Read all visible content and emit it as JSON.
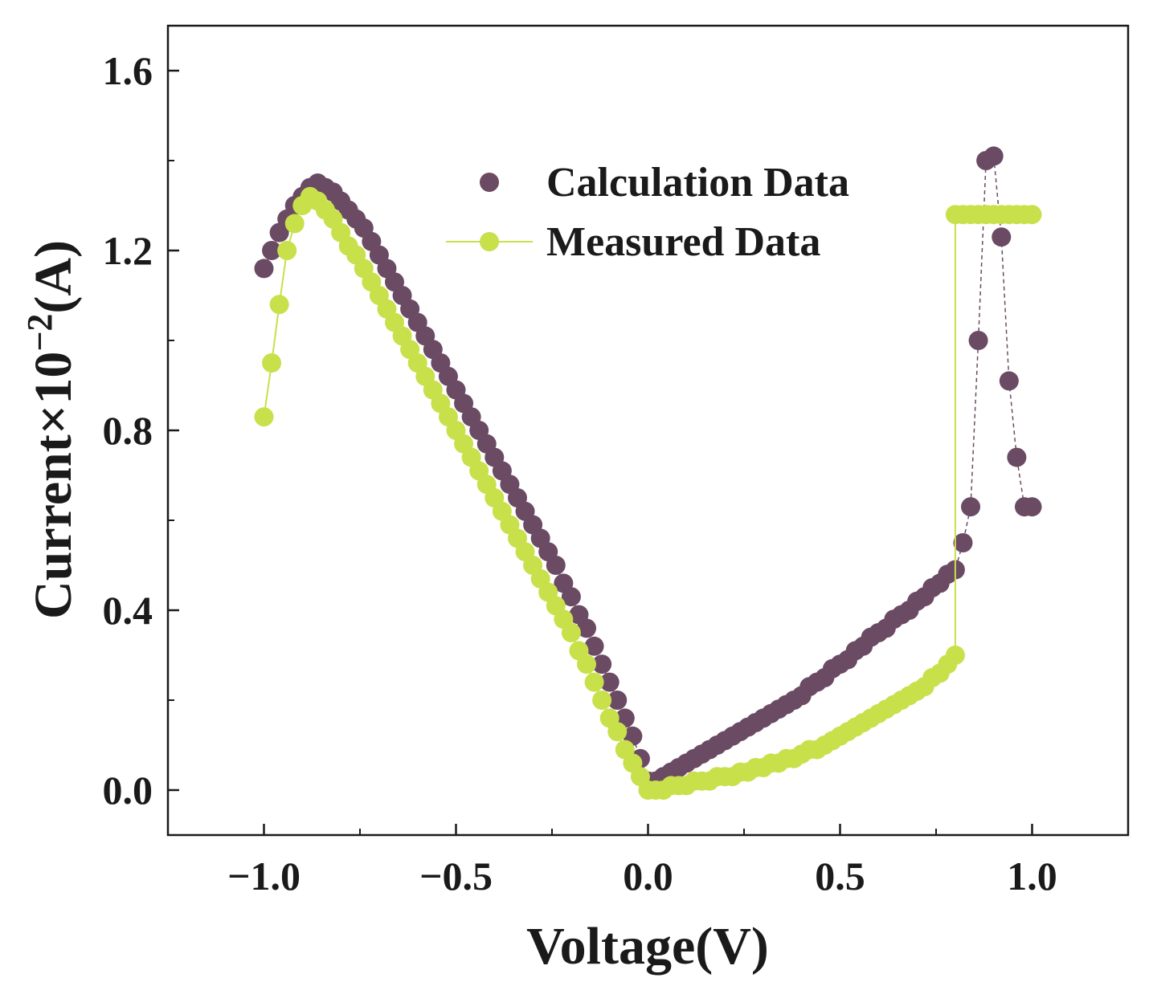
{
  "chart_data": {
    "type": "scatter",
    "xlabel": "Voltage(V)",
    "ylabel": {
      "prefix": "Current×10",
      "exponent": "−2",
      "suffix": "(A)"
    },
    "xlim": [
      -1.25,
      1.25
    ],
    "ylim": [
      -0.1,
      1.7
    ],
    "xticks": [
      -1.0,
      -0.5,
      0.0,
      0.5,
      1.0
    ],
    "xtick_labels": [
      "−1.0",
      "−0.5",
      "0.0",
      "0.5",
      "1.0"
    ],
    "yticks": [
      0.0,
      0.4,
      0.8,
      1.2,
      1.6
    ],
    "ytick_labels": [
      "0.0",
      "0.4",
      "0.8",
      "1.2",
      "1.6"
    ],
    "grid": false,
    "legend_position": "top-right",
    "series": [
      {
        "name": "Calculation Data",
        "color": "#6b4a64",
        "marker": "circle",
        "line": false,
        "x": [
          -1.0,
          -0.98,
          -0.96,
          -0.94,
          -0.92,
          -0.9,
          -0.88,
          -0.86,
          -0.84,
          -0.82,
          -0.8,
          -0.78,
          -0.76,
          -0.74,
          -0.72,
          -0.7,
          -0.68,
          -0.66,
          -0.64,
          -0.62,
          -0.6,
          -0.58,
          -0.56,
          -0.54,
          -0.52,
          -0.5,
          -0.48,
          -0.46,
          -0.44,
          -0.42,
          -0.4,
          -0.38,
          -0.36,
          -0.34,
          -0.32,
          -0.3,
          -0.28,
          -0.26,
          -0.24,
          -0.22,
          -0.2,
          -0.18,
          -0.16,
          -0.14,
          -0.12,
          -0.1,
          -0.08,
          -0.06,
          -0.04,
          -0.02,
          0.0,
          0.02,
          0.04,
          0.06,
          0.08,
          0.1,
          0.12,
          0.14,
          0.16,
          0.18,
          0.2,
          0.22,
          0.24,
          0.26,
          0.28,
          0.3,
          0.32,
          0.34,
          0.36,
          0.38,
          0.4,
          0.42,
          0.44,
          0.46,
          0.48,
          0.5,
          0.52,
          0.54,
          0.56,
          0.58,
          0.6,
          0.62,
          0.64,
          0.66,
          0.68,
          0.7,
          0.72,
          0.74,
          0.76,
          0.78,
          0.8,
          0.82,
          0.84,
          0.86,
          0.88,
          0.9,
          0.92,
          0.94,
          0.96,
          0.98,
          1.0
        ],
        "y": [
          1.16,
          1.2,
          1.24,
          1.27,
          1.3,
          1.32,
          1.34,
          1.35,
          1.34,
          1.33,
          1.31,
          1.29,
          1.27,
          1.25,
          1.22,
          1.19,
          1.16,
          1.13,
          1.1,
          1.07,
          1.04,
          1.01,
          0.98,
          0.95,
          0.92,
          0.89,
          0.86,
          0.83,
          0.8,
          0.77,
          0.74,
          0.71,
          0.68,
          0.65,
          0.62,
          0.59,
          0.56,
          0.53,
          0.5,
          0.46,
          0.43,
          0.39,
          0.36,
          0.32,
          0.28,
          0.24,
          0.2,
          0.16,
          0.12,
          0.07,
          0.02,
          0.02,
          0.03,
          0.04,
          0.05,
          0.06,
          0.07,
          0.08,
          0.09,
          0.1,
          0.11,
          0.12,
          0.13,
          0.14,
          0.15,
          0.16,
          0.17,
          0.18,
          0.19,
          0.2,
          0.21,
          0.23,
          0.24,
          0.25,
          0.27,
          0.28,
          0.29,
          0.31,
          0.32,
          0.34,
          0.35,
          0.36,
          0.38,
          0.39,
          0.4,
          0.42,
          0.43,
          0.45,
          0.46,
          0.48,
          0.49,
          0.55,
          0.63,
          1.0,
          1.4,
          1.41,
          1.23,
          0.91,
          0.74,
          0.63,
          0.63
        ]
      },
      {
        "name": "Measured Data",
        "color": "#c8e04a",
        "marker": "circle",
        "line": true,
        "x": [
          -1.0,
          -0.98,
          -0.96,
          -0.94,
          -0.92,
          -0.9,
          -0.88,
          -0.86,
          -0.84,
          -0.82,
          -0.8,
          -0.78,
          -0.76,
          -0.74,
          -0.72,
          -0.7,
          -0.68,
          -0.66,
          -0.64,
          -0.62,
          -0.6,
          -0.58,
          -0.56,
          -0.54,
          -0.52,
          -0.5,
          -0.48,
          -0.46,
          -0.44,
          -0.42,
          -0.4,
          -0.38,
          -0.36,
          -0.34,
          -0.32,
          -0.3,
          -0.28,
          -0.26,
          -0.24,
          -0.22,
          -0.2,
          -0.18,
          -0.16,
          -0.14,
          -0.12,
          -0.1,
          -0.08,
          -0.06,
          -0.04,
          -0.02,
          0.0,
          0.02,
          0.04,
          0.06,
          0.08,
          0.1,
          0.12,
          0.14,
          0.16,
          0.18,
          0.2,
          0.22,
          0.24,
          0.26,
          0.28,
          0.3,
          0.32,
          0.34,
          0.36,
          0.38,
          0.4,
          0.42,
          0.44,
          0.46,
          0.48,
          0.5,
          0.52,
          0.54,
          0.56,
          0.58,
          0.6,
          0.62,
          0.64,
          0.66,
          0.68,
          0.7,
          0.72,
          0.74,
          0.76,
          0.78,
          0.8,
          0.8,
          0.82,
          0.84,
          0.86,
          0.88,
          0.9,
          0.92,
          0.94,
          0.96,
          0.98,
          1.0
        ],
        "y": [
          0.83,
          0.95,
          1.08,
          1.2,
          1.26,
          1.3,
          1.32,
          1.31,
          1.29,
          1.27,
          1.24,
          1.21,
          1.19,
          1.16,
          1.13,
          1.1,
          1.07,
          1.04,
          1.01,
          0.98,
          0.95,
          0.92,
          0.89,
          0.86,
          0.83,
          0.8,
          0.77,
          0.74,
          0.71,
          0.68,
          0.65,
          0.62,
          0.59,
          0.56,
          0.53,
          0.5,
          0.47,
          0.44,
          0.41,
          0.38,
          0.35,
          0.31,
          0.28,
          0.24,
          0.2,
          0.16,
          0.13,
          0.09,
          0.06,
          0.03,
          0.0,
          0.0,
          0.0,
          0.01,
          0.01,
          0.01,
          0.02,
          0.02,
          0.02,
          0.03,
          0.03,
          0.03,
          0.04,
          0.04,
          0.05,
          0.05,
          0.06,
          0.06,
          0.07,
          0.07,
          0.08,
          0.09,
          0.09,
          0.1,
          0.11,
          0.12,
          0.13,
          0.14,
          0.15,
          0.16,
          0.17,
          0.18,
          0.19,
          0.2,
          0.21,
          0.22,
          0.23,
          0.25,
          0.26,
          0.28,
          0.3,
          1.28,
          1.28,
          1.28,
          1.28,
          1.28,
          1.28,
          1.28,
          1.28,
          1.28,
          1.28,
          1.28
        ]
      }
    ]
  }
}
